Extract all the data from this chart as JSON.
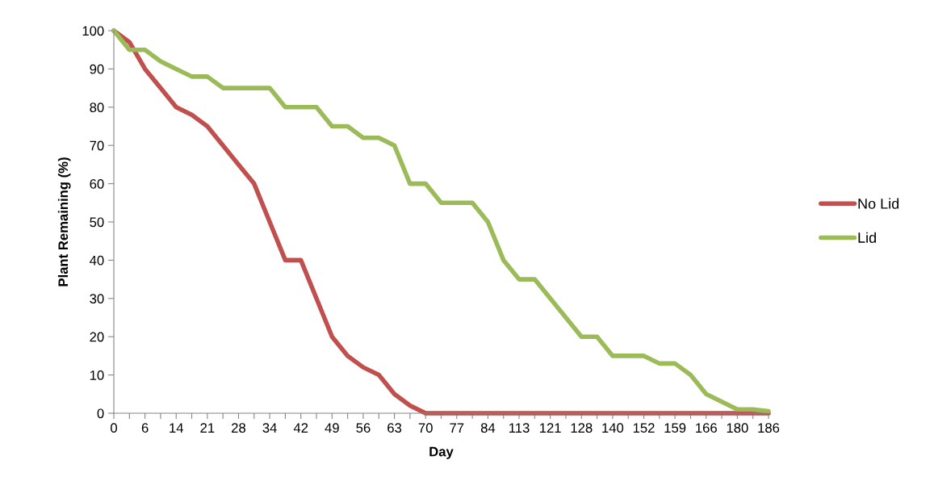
{
  "chart_data": {
    "type": "line",
    "xlabel": "Day",
    "ylabel": "Plant Remaining (%)",
    "categories": [
      "0",
      null,
      "6",
      null,
      "14",
      null,
      "21",
      null,
      "28",
      null,
      "34",
      null,
      "42",
      null,
      "49",
      null,
      "56",
      null,
      "63",
      null,
      "70",
      null,
      "77",
      null,
      "84",
      null,
      "113",
      null,
      "121",
      null,
      "128",
      null,
      "140",
      null,
      "152",
      null,
      "159",
      null,
      "166",
      null,
      "180",
      null,
      "186"
    ],
    "series": [
      {
        "name": "No Lid",
        "color": "#c0504d",
        "values": [
          100,
          97,
          90,
          85,
          80,
          78,
          75,
          70,
          65,
          60,
          50,
          40,
          40,
          30,
          20,
          15,
          12,
          10,
          5,
          2,
          0,
          0,
          0,
          0,
          0,
          0,
          0,
          0,
          0,
          0,
          0,
          0,
          0,
          0,
          0,
          0,
          0,
          0,
          0,
          0,
          0,
          0,
          0
        ]
      },
      {
        "name": "Lid",
        "color": "#9bbb59",
        "values": [
          100,
          95,
          95,
          92,
          90,
          88,
          88,
          85,
          85,
          85,
          85,
          80,
          80,
          80,
          75,
          75,
          72,
          72,
          70,
          60,
          60,
          55,
          55,
          55,
          50,
          40,
          35,
          35,
          30,
          25,
          20,
          20,
          15,
          15,
          15,
          13,
          13,
          10,
          5,
          3,
          1,
          1,
          0.5
        ]
      }
    ],
    "ylim": [
      0,
      100
    ],
    "yticks": [
      0,
      10,
      20,
      30,
      40,
      50,
      60,
      70,
      80,
      90,
      100
    ],
    "grid": false,
    "legend": "right",
    "line_style": "solid",
    "marker": "none"
  }
}
